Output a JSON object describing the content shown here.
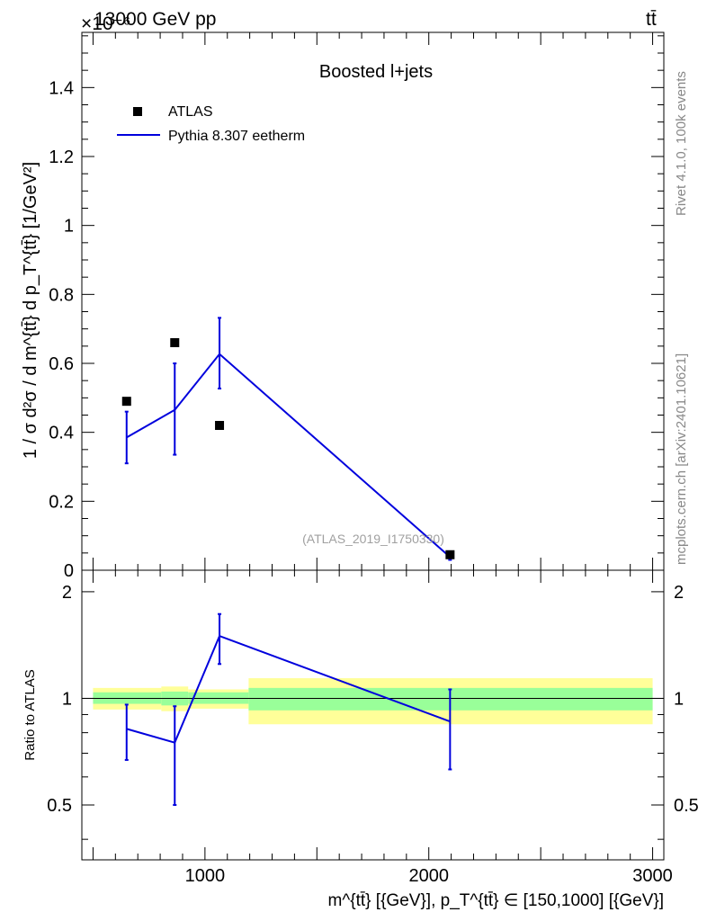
{
  "header": {
    "left": "13000 GeV pp",
    "right": "tt̄",
    "exponent": "×10⁻⁶"
  },
  "side": {
    "top": "Rivet 4.1.0,  100k events",
    "bottom": "mcplots.cern.ch [arXiv:2401.10621]"
  },
  "colors": {
    "data": "#000000",
    "mc": "#0000dd",
    "band_inner": "#99ff99",
    "band_outer": "#ffff99"
  },
  "chart_data": [
    {
      "type": "scatter",
      "panel": "main",
      "title": "Boosted l+jets",
      "analysis_tag": "(ATLAS_2019_I1750330)",
      "xlabel": "m^{tt̄} [{GeV}], p_T^{tt̄} ∈ [150,1000] [{GeV}]",
      "ylabel": "1 / σ d²σ / d m^{tt̄} d p_T^{tt̄} [1/GeV²]",
      "y_scale": "×10⁻⁶",
      "xlim": [
        450,
        3050
      ],
      "ylim": [
        0,
        1.56
      ],
      "x_ticks": [
        1000,
        2000,
        3000
      ],
      "y_ticks": [
        0,
        0.2,
        0.4,
        0.6,
        0.8,
        1,
        1.2,
        1.4
      ],
      "y_tick_labels": [
        "0",
        "0.2",
        "0.4",
        "0.6",
        "0.8",
        "1",
        "1.2",
        "1.4"
      ],
      "legend": [
        {
          "label": "ATLAS",
          "style": "marker"
        },
        {
          "label": "Pythia 8.307 eetherm",
          "style": "line"
        }
      ],
      "series": [
        {
          "name": "ATLAS",
          "x": [
            650,
            865,
            1065,
            2095
          ],
          "y": [
            0.49,
            0.66,
            0.42,
            0.045
          ]
        },
        {
          "name": "Pythia 8.307 eetherm",
          "x": [
            650,
            865,
            1065,
            2095
          ],
          "y": [
            0.385,
            0.465,
            0.627,
            0.038
          ],
          "err_low": [
            0.075,
            0.13,
            0.1,
            0.008
          ],
          "err_high": [
            0.075,
            0.135,
            0.105,
            0.008
          ]
        }
      ]
    },
    {
      "type": "line",
      "panel": "ratio",
      "ylabel": "Ratio to ATLAS",
      "xlim": [
        450,
        3050
      ],
      "ylim": [
        0.35,
        2.3
      ],
      "y_ticks": [
        0.5,
        1,
        2
      ],
      "y_tick_labels": [
        "0.5",
        "1",
        "2"
      ],
      "x_tick_labels": [
        "1000",
        "2000",
        "3000"
      ],
      "reference": 1,
      "bands": [
        {
          "x0": 500,
          "x1": 805,
          "inner": [
            0.965,
            1.04
          ],
          "outer": [
            0.93,
            1.07
          ]
        },
        {
          "x0": 805,
          "x1": 925,
          "inner": [
            0.955,
            1.045
          ],
          "outer": [
            0.92,
            1.08
          ]
        },
        {
          "x0": 925,
          "x1": 1195,
          "inner": [
            0.965,
            1.04
          ],
          "outer": [
            0.935,
            1.06
          ]
        },
        {
          "x0": 1195,
          "x1": 3000,
          "inner": [
            0.925,
            1.07
          ],
          "outer": [
            0.845,
            1.14
          ]
        }
      ],
      "series": [
        {
          "name": "Pythia 8.307 eetherm / ATLAS",
          "x": [
            650,
            865,
            1065,
            2095
          ],
          "y": [
            0.82,
            0.75,
            1.5,
            0.86
          ],
          "err_low": [
            0.15,
            0.25,
            0.25,
            0.23
          ],
          "err_high": [
            0.14,
            0.2,
            0.23,
            0.2
          ]
        }
      ]
    }
  ]
}
